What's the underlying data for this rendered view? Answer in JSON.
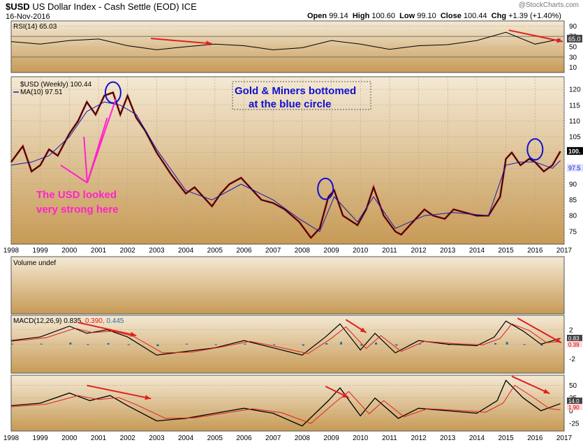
{
  "header": {
    "symbol": "$USD",
    "name": "US Dollar Index - Cash Settle (EOD)",
    "exchange": "ICE",
    "date": "16-Nov-2016",
    "watermark": "@StockCharts.com",
    "open_label": "Open",
    "open": "99.14",
    "high_label": "High",
    "high": "100.60",
    "low_label": "Low",
    "low": "99.10",
    "close_label": "Close",
    "close": "100.44",
    "chg_label": "Chg",
    "chg": "+1.39 (+1.40%)"
  },
  "colors": {
    "panel_bg_top": "#f4e9d4",
    "panel_bg_bottom": "#c79a55",
    "price_line": "#000000",
    "ma_line": "#1a1aa8",
    "down_bar": "#cc1b1b",
    "annotation_red": "#e0201e",
    "annotation_magenta": "#ff22cc",
    "annotation_blue": "#1010d0",
    "macd_hist": "#2a6e9e",
    "grid": "#b8a585"
  },
  "chart_data": [
    {
      "panel": "rsi",
      "type": "line",
      "title": "RSI(14) 65.03",
      "indicator": "RSI(14)",
      "last_value": 65.03,
      "ylim": [
        0,
        100
      ],
      "y_ticks": [
        90,
        70,
        50,
        30,
        10
      ],
      "overbought": 70,
      "oversold": 30,
      "current_label": "65.0",
      "series": [
        {
          "name": "RSI",
          "x": [
            1998.0,
            1999.0,
            2000.0,
            2001.0,
            2002.0,
            2003.0,
            2004.0,
            2005.0,
            2006.0,
            2007.0,
            2008.0,
            2009.0,
            2010.0,
            2011.0,
            2012.0,
            2013.0,
            2014.0,
            2015.0,
            2016.0,
            2016.87
          ],
          "values": [
            60,
            55,
            62,
            65,
            52,
            44,
            50,
            55,
            52,
            44,
            48,
            62,
            55,
            45,
            52,
            54,
            62,
            78,
            55,
            65
          ]
        }
      ]
    },
    {
      "panel": "price",
      "type": "line",
      "title": "$USD (Weekly) 100.44",
      "legend": [
        "$USD (Weekly) 100.44",
        "MA(10) 97.51"
      ],
      "ylim": [
        71,
        124
      ],
      "y_ticks": [
        120,
        115,
        110,
        105,
        100,
        95,
        90,
        85,
        80,
        75
      ],
      "last_price_label": "100.",
      "ma_label": "97.5",
      "x_ticks": [
        "1998",
        "1999",
        "2000",
        "2001",
        "2002",
        "2003",
        "2004",
        "2005",
        "2006",
        "2007",
        "2008",
        "2009",
        "2010",
        "2011",
        "2012",
        "2013",
        "2014",
        "2015",
        "2016",
        "2017"
      ],
      "xlim": [
        1998.0,
        2017.0
      ],
      "series": [
        {
          "name": "$USD (Weekly)",
          "x": [
            1998.0,
            1998.4,
            1998.7,
            1999.0,
            1999.3,
            1999.6,
            2000.0,
            2000.3,
            2000.6,
            2000.9,
            2001.2,
            2001.5,
            2001.75,
            2002.0,
            2002.3,
            2002.6,
            2003.0,
            2003.5,
            2004.0,
            2004.3,
            2004.6,
            2004.9,
            2005.2,
            2005.5,
            2005.9,
            2006.3,
            2006.6,
            2007.0,
            2007.4,
            2007.9,
            2008.3,
            2008.6,
            2008.9,
            2009.1,
            2009.4,
            2009.9,
            2010.2,
            2010.45,
            2010.8,
            2011.2,
            2011.4,
            2011.8,
            2012.2,
            2012.5,
            2012.9,
            2013.2,
            2013.6,
            2014.0,
            2014.4,
            2014.8,
            2015.0,
            2015.2,
            2015.5,
            2015.8,
            2016.0,
            2016.3,
            2016.6,
            2016.87
          ],
          "values": [
            97,
            102,
            94,
            96,
            101,
            99,
            106,
            110,
            116,
            112,
            118,
            119,
            112,
            118,
            111,
            107,
            100,
            93,
            87,
            89,
            86,
            83,
            87,
            90,
            92,
            88,
            85,
            84,
            82,
            78,
            73,
            76,
            86,
            88,
            80,
            77,
            82,
            89,
            80,
            75,
            74,
            78,
            82,
            80,
            79,
            82,
            81,
            80,
            80,
            86,
            98,
            100,
            96,
            98,
            97,
            94,
            96,
            100.4
          ]
        },
        {
          "name": "MA(10)",
          "x": [
            1998.0,
            1998.7,
            1999.3,
            2000.0,
            2000.6,
            2001.2,
            2001.75,
            2002.3,
            2003.0,
            2004.0,
            2004.9,
            2005.9,
            2007.0,
            2007.9,
            2008.6,
            2009.1,
            2009.9,
            2010.45,
            2011.2,
            2012.2,
            2013.2,
            2014.4,
            2015.0,
            2015.5,
            2016.0,
            2016.6,
            2016.87
          ],
          "values": [
            96,
            97,
            99,
            105,
            113,
            116,
            115,
            112,
            101,
            88,
            85,
            90,
            85,
            79,
            75,
            86,
            78,
            86,
            76,
            80,
            81,
            80,
            96,
            97,
            97,
            95,
            97.5
          ]
        }
      ]
    },
    {
      "panel": "volume",
      "type": "bar",
      "title": "Volume undef",
      "series": []
    },
    {
      "panel": "macd",
      "type": "line",
      "title": "MACD(12,26,9) 0.835, 0.390, 0.445",
      "values_text": {
        "macd": "0.835,",
        "signal": "0.390,",
        "histogram": "0.445"
      },
      "y_ticks": [
        2,
        0,
        -2
      ],
      "current_labels": [
        "0.83",
        "0.39"
      ],
      "series": [
        {
          "name": "MACD",
          "x": [
            1998.0,
            1999.0,
            2000.0,
            2000.6,
            2001.3,
            2002.0,
            2003.0,
            2004.0,
            2005.0,
            2006.0,
            2007.0,
            2008.0,
            2008.8,
            2009.3,
            2010.0,
            2010.5,
            2011.2,
            2012.0,
            2013.0,
            2014.0,
            2014.6,
            2015.0,
            2015.6,
            2016.2,
            2016.87
          ],
          "values": [
            0.5,
            1.0,
            2.5,
            1.5,
            2.0,
            1.0,
            -1.5,
            -1.0,
            -0.5,
            0.5,
            -0.5,
            -1.5,
            1.0,
            2.8,
            -0.8,
            1.5,
            -1.2,
            0.5,
            0.0,
            -0.2,
            1.0,
            3.2,
            1.8,
            0.0,
            0.8
          ]
        },
        {
          "name": "Signal",
          "x": [
            1998.0,
            1999.2,
            2000.2,
            2000.8,
            2001.5,
            2002.2,
            2003.2,
            2004.2,
            2005.2,
            2006.2,
            2007.2,
            2008.2,
            2009.0,
            2009.5,
            2010.2,
            2010.7,
            2011.4,
            2012.2,
            2013.2,
            2014.2,
            2014.8,
            2015.2,
            2015.8,
            2016.4,
            2016.87
          ],
          "values": [
            0.4,
            0.9,
            2.2,
            1.6,
            1.8,
            1.1,
            -1.2,
            -1.1,
            -0.4,
            0.4,
            -0.4,
            -1.3,
            0.8,
            2.4,
            -0.6,
            1.2,
            -1.0,
            0.4,
            0.1,
            -0.1,
            0.8,
            2.8,
            1.9,
            0.2,
            0.4
          ]
        }
      ]
    },
    {
      "panel": "momentum",
      "type": "line",
      "title": "",
      "y_ticks": [
        50,
        25,
        0,
        -25
      ],
      "current_labels": [
        "14.0",
        "1.90"
      ],
      "series": [
        {
          "name": "Oscillator",
          "x": [
            1998.0,
            1999.0,
            2000.0,
            2000.7,
            2001.4,
            2002.0,
            2003.0,
            2004.0,
            2005.0,
            2006.0,
            2007.0,
            2008.0,
            2008.9,
            2009.3,
            2010.0,
            2010.5,
            2011.3,
            2012.0,
            2013.0,
            2014.0,
            2014.7,
            2015.0,
            2015.6,
            2016.2,
            2016.87
          ],
          "values": [
            10,
            15,
            35,
            20,
            30,
            10,
            -20,
            -15,
            -5,
            5,
            -5,
            -30,
            20,
            45,
            -10,
            25,
            -15,
            5,
            0,
            -5,
            20,
            60,
            25,
            0,
            14
          ]
        },
        {
          "name": "Signal",
          "x": [
            1998.0,
            1999.2,
            2000.3,
            2001.0,
            2001.7,
            2002.3,
            2003.3,
            2004.3,
            2005.3,
            2006.3,
            2007.3,
            2008.3,
            2009.1,
            2009.6,
            2010.3,
            2010.8,
            2011.5,
            2012.3,
            2013.3,
            2014.3,
            2014.9,
            2015.3,
            2015.9,
            2016.5,
            2016.87
          ],
          "values": [
            8,
            13,
            30,
            22,
            26,
            12,
            -15,
            -14,
            -5,
            4,
            -4,
            -25,
            15,
            38,
            -6,
            20,
            -12,
            4,
            1,
            -3,
            15,
            50,
            28,
            4,
            2
          ]
        }
      ]
    }
  ],
  "annotations": {
    "magenta_text_1": "The USD looked",
    "magenta_text_2": "very strong here",
    "blue_text_1": "Gold & Miners bottomed",
    "blue_text_2": "at the blue circle"
  }
}
